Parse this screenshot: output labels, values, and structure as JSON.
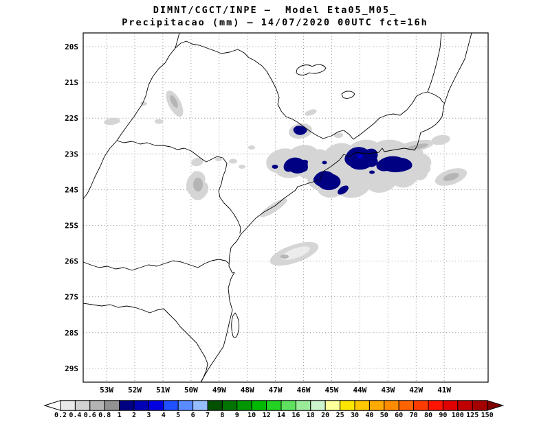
{
  "title": {
    "line1": "DIMNT/CGCT/INPE —  Model Eta05_M05_",
    "line2": "Precipitacao (mm) — 14/07/2020 00UTC fct=16h"
  },
  "map": {
    "lat_labels": [
      "20S",
      "21S",
      "22S",
      "23S",
      "24S",
      "25S",
      "26S",
      "27S",
      "28S",
      "29S"
    ],
    "lon_labels": [
      "53W",
      "52W",
      "51W",
      "50W",
      "49W",
      "48W",
      "47W",
      "46W",
      "45W",
      "44W",
      "43W",
      "42W",
      "41W"
    ]
  },
  "colorbar": {
    "unit": "mm",
    "labels": [
      "0.2",
      "0.4",
      "0.6",
      "0.8",
      "1",
      "2",
      "3",
      "4",
      "5",
      "6",
      "7",
      "8",
      "9",
      "10",
      "12",
      "14",
      "16",
      "18",
      "20",
      "25",
      "30",
      "40",
      "50",
      "60",
      "70",
      "80",
      "90",
      "100",
      "125",
      "150"
    ],
    "cell_colors": [
      "#e9e9e9",
      "#d2d2d2",
      "#b4b4b4",
      "#929292",
      "#000083",
      "#0000b4",
      "#0000e1",
      "#2050ff",
      "#5a8cff",
      "#96beff",
      "#005000",
      "#007300",
      "#009600",
      "#00b900",
      "#23d223",
      "#5fe15f",
      "#9beb9b",
      "#cdf5cd",
      "#ffff9b",
      "#ffe600",
      "#ffc800",
      "#ffaa00",
      "#ff8c00",
      "#ff6400",
      "#ff3c00",
      "#ff1400",
      "#e10000",
      "#c30000",
      "#a50000"
    ],
    "below_min_color": "#ffffff",
    "above_max_color": "#7d0000"
  },
  "precip_colors": {
    "light": "#d5d5d5",
    "mid": "#b5b5b5",
    "heavy": "#000083",
    "heavy2": "#0000cd"
  },
  "chart_data": {
    "type": "heatmap",
    "title": "Precipitacao (mm) — 14/07/2020 00UTC fct=16h",
    "institution": "DIMNT/CGCT/INPE",
    "model": "Eta05_M05_",
    "x_ticks": [
      "53W",
      "52W",
      "51W",
      "50W",
      "49W",
      "48W",
      "47W",
      "46W",
      "45W",
      "44W",
      "43W",
      "42W",
      "41W"
    ],
    "y_ticks": [
      "20S",
      "21S",
      "22S",
      "23S",
      "24S",
      "25S",
      "26S",
      "27S",
      "28S",
      "29S"
    ],
    "colorbar_levels_mm": [
      0.2,
      0.4,
      0.6,
      0.8,
      1,
      2,
      3,
      4,
      5,
      6,
      7,
      8,
      9,
      10,
      12,
      14,
      16,
      18,
      20,
      25,
      30,
      40,
      50,
      60,
      70,
      80,
      90,
      100,
      125,
      150
    ],
    "legend_position": "bottom",
    "grid": "dotted"
  }
}
